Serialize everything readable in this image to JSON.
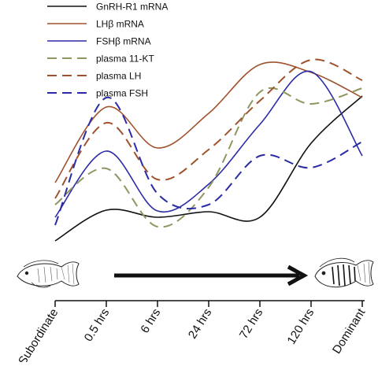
{
  "chart_data": {
    "type": "line",
    "title": "",
    "xlabel": "",
    "ylabel": "",
    "categories": [
      "Subordinate",
      "0.5 hrs",
      "6 hrs",
      "24 hrs",
      "72 hrs",
      "120 hrs",
      "Dominant"
    ],
    "grid": false,
    "legend": "top-left",
    "annotation": "transition from subordinate to dominant (fish illustrations with arrow)",
    "series": [
      {
        "name": "GnRH-R1 mRNA",
        "style": "solid",
        "color": "#111111",
        "values": [
          8,
          47,
          38,
          45,
          38,
          132,
          192
        ]
      },
      {
        "name": "LHβ mRNA",
        "style": "solid",
        "color": "#a0522d",
        "values": [
          82,
          178,
          126,
          170,
          232,
          222,
          190
        ]
      },
      {
        "name": "FSHβ mRNA",
        "style": "solid",
        "color": "#2b2ba6",
        "values": [
          38,
          122,
          46,
          80,
          156,
          223,
          116
        ]
      },
      {
        "name": "plasma 11-KT",
        "style": "dashed",
        "color": "#8f9660",
        "values": [
          54,
          100,
          26,
          76,
          197,
          182,
          202
        ]
      },
      {
        "name": "plasma LH",
        "style": "dashed",
        "color": "#a0522d",
        "values": [
          62,
          158,
          86,
          124,
          186,
          238,
          212
        ]
      },
      {
        "name": "plasma FSH",
        "style": "dashed",
        "color": "#2b2ba6",
        "values": [
          28,
          190,
          68,
          54,
          116,
          101,
          134
        ]
      }
    ],
    "ylim": [
      -36,
      280
    ]
  }
}
